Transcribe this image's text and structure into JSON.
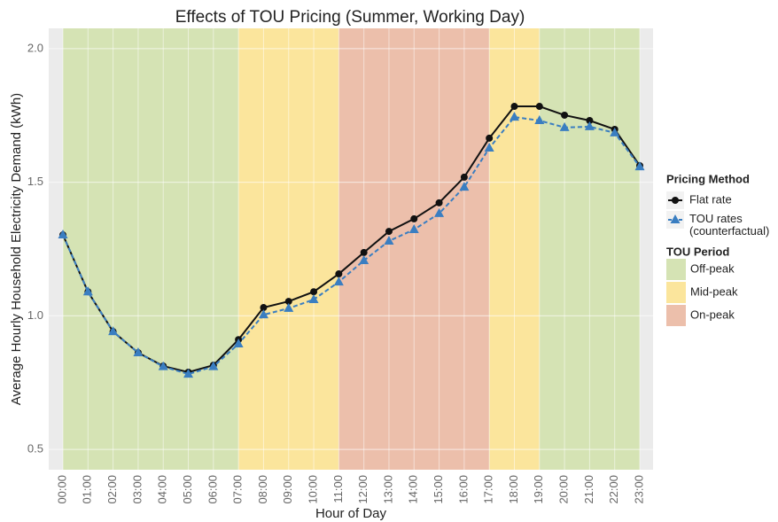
{
  "chart_data": {
    "type": "line",
    "title": "Effects of TOU Pricing (Summer, Working Day)",
    "x_label": "Hour of Day",
    "y_label": "Average Hourly Household Electricity Demand (kWh)",
    "categories": [
      "00:00",
      "01:00",
      "02:00",
      "03:00",
      "04:00",
      "05:00",
      "06:00",
      "07:00",
      "08:00",
      "09:00",
      "10:00",
      "11:00",
      "12:00",
      "13:00",
      "14:00",
      "15:00",
      "16:00",
      "17:00",
      "18:00",
      "19:00",
      "20:00",
      "21:00",
      "22:00",
      "23:00"
    ],
    "ylim": [
      0.424,
      2.076
    ],
    "yticks": [
      {
        "value": 0.5,
        "label": "0.5"
      },
      {
        "value": 1,
        "label": "1.0"
      },
      {
        "value": 1.5,
        "label": "1.5"
      },
      {
        "value": 2,
        "label": "2.0"
      }
    ],
    "grid": true,
    "legend_title": "Pricing Method",
    "series": [
      {
        "name": "Flat rate",
        "color": "#111111",
        "marker": "circle",
        "dash": false,
        "values": [
          1.303,
          1.09,
          0.941,
          0.862,
          0.812,
          0.789,
          0.815,
          0.911,
          1.031,
          1.054,
          1.09,
          1.157,
          1.237,
          1.316,
          1.363,
          1.423,
          1.519,
          1.665,
          1.784,
          1.784,
          1.751,
          1.731,
          1.698,
          1.562
        ]
      },
      {
        "name": "TOU rates (counterfactual)",
        "color": "#3a7ec1",
        "marker": "triangle",
        "dash": true,
        "values": [
          1.303,
          1.09,
          0.941,
          0.862,
          0.81,
          0.782,
          0.81,
          0.895,
          1.004,
          1.028,
          1.061,
          1.127,
          1.207,
          1.28,
          1.323,
          1.383,
          1.482,
          1.628,
          1.744,
          1.731,
          1.705,
          1.708,
          1.685,
          1.558
        ]
      }
    ],
    "period_legend_title": "TOU Period",
    "periods": [
      {
        "name": "Off-peak",
        "color": "#d5e3b4"
      },
      {
        "name": "Mid-peak",
        "color": "#fbe59c"
      },
      {
        "name": "On-peak",
        "color": "#ecbfab"
      }
    ],
    "bands": [
      {
        "period": "Off-peak",
        "from": "00:00",
        "to": "07:00"
      },
      {
        "period": "Mid-peak",
        "from": "07:00",
        "to": "11:00"
      },
      {
        "period": "On-peak",
        "from": "11:00",
        "to": "17:00"
      },
      {
        "period": "Mid-peak",
        "from": "17:00",
        "to": "19:00"
      },
      {
        "period": "Off-peak",
        "from": "19:00",
        "to": "23:00"
      }
    ]
  }
}
